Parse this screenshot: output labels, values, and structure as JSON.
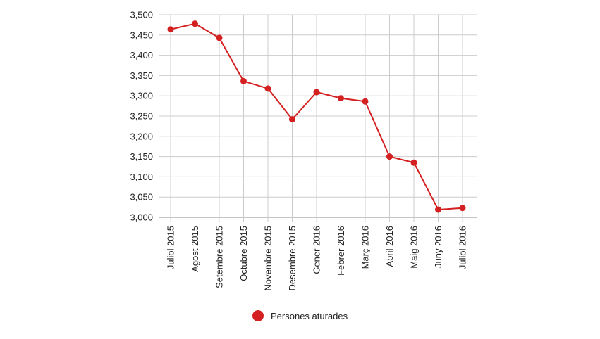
{
  "chart_data": {
    "type": "line",
    "categories": [
      "Juliol 2015",
      "Agost 2015",
      "Setembre 2015",
      "Octubre 2015",
      "Novembre 2015",
      "Desembre 2015",
      "Gener 2016",
      "Febrer 2016",
      "Març 2016",
      "Abril 2016",
      "Maig 2016",
      "Juny 2016",
      "Juliol 2016"
    ],
    "series": [
      {
        "name": "Persones aturades",
        "values": [
          3464,
          3478,
          3443,
          3336,
          3318,
          3242,
          3309,
          3294,
          3286,
          3150,
          3135,
          3019,
          3023
        ]
      }
    ],
    "y_ticks": [
      "3,000",
      "3,050",
      "3,100",
      "3,150",
      "3,200",
      "3,250",
      "3,300",
      "3,350",
      "3,400",
      "3,450",
      "3,500"
    ],
    "ylim": [
      3000,
      3500
    ],
    "grid": true,
    "legend_position": "bottom",
    "colors": {
      "series": "#d42020",
      "grid": "#cccccc",
      "axis": "#888888"
    }
  }
}
